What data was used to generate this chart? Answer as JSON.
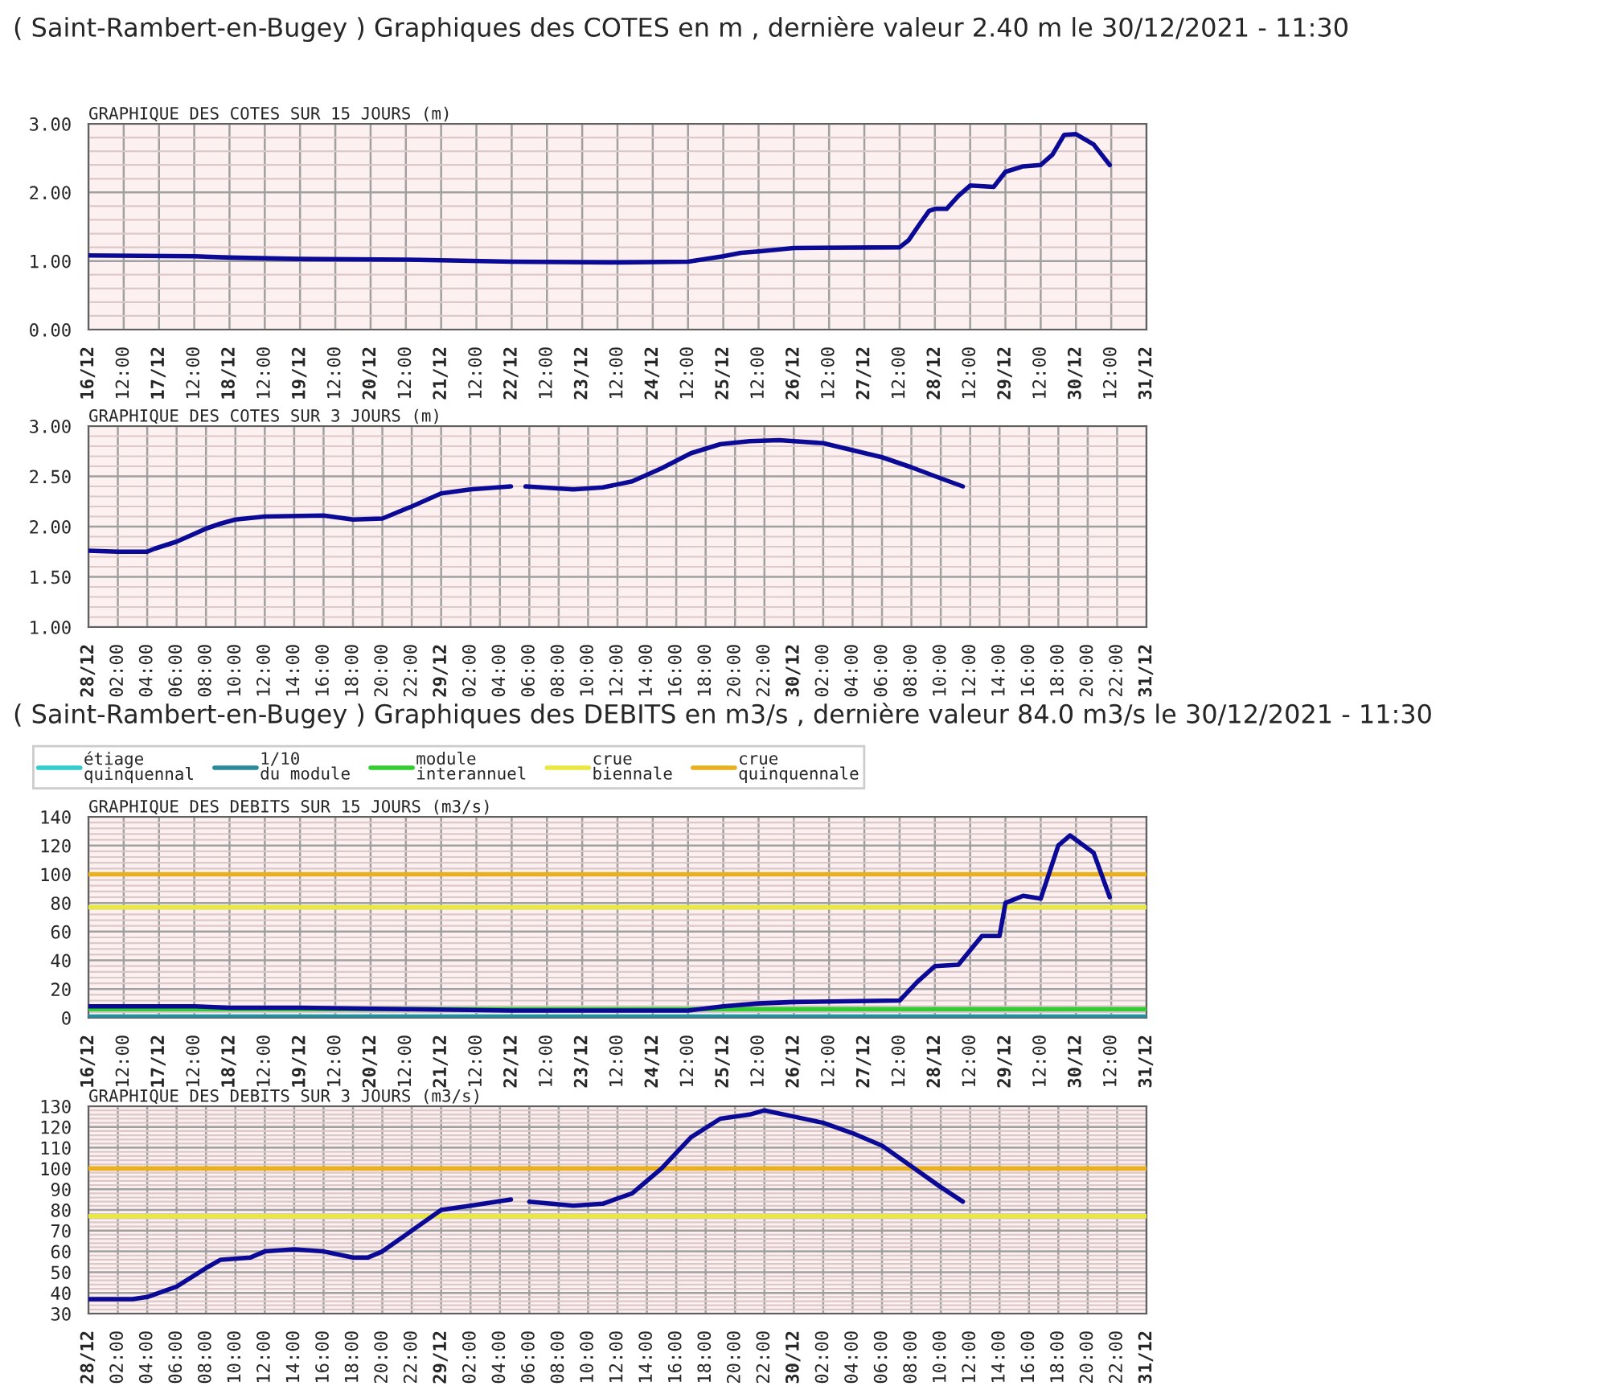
{
  "chart_data": [
    {
      "type": "line",
      "title": "GRAPHIQUE DES COTES SUR 15 JOURS (m)",
      "annotations": [
        "( Saint-Rambert-en-Bugey ) Graphiques des COTES en m , dernière valeur 2.40 m le 30/12/2021 - 11:30"
      ],
      "x": [
        "2021-12-16T00:00",
        "2021-12-17T12:00",
        "2021-12-18T00:00",
        "2021-12-19T00:00",
        "2021-12-20T12:00",
        "2021-12-21T00:00",
        "2021-12-22T00:00",
        "2021-12-23T12:00",
        "2021-12-24T12:00",
        "2021-12-25T00:00",
        "2021-12-25T06:00",
        "2021-12-25T12:00",
        "2021-12-26T00:00",
        "2021-12-27T12:00",
        "2021-12-27T15:00",
        "2021-12-27T19:00",
        "2021-12-27T22:00",
        "2021-12-28T00:00",
        "2021-12-28T04:00",
        "2021-12-28T08:00",
        "2021-12-28T12:00",
        "2021-12-28T20:00",
        "2021-12-29T00:00",
        "2021-12-29T06:00",
        "2021-12-29T12:00",
        "2021-12-29T16:00",
        "2021-12-29T20:00",
        "2021-12-30T00:00",
        "2021-12-30T06:00",
        "2021-12-30T11:30"
      ],
      "series": [
        {
          "color": "#0a0a96",
          "values": [
            1.08,
            1.07,
            1.05,
            1.03,
            1.02,
            1.01,
            0.99,
            0.98,
            0.99,
            1.07,
            1.12,
            1.14,
            1.19,
            1.2,
            1.3,
            1.55,
            1.73,
            1.76,
            1.76,
            1.95,
            2.1,
            2.08,
            2.3,
            2.38,
            2.4,
            2.55,
            2.84,
            2.85,
            2.7,
            2.4
          ]
        }
      ],
      "xlim": [
        "2021-12-16T00:00",
        "2021-12-31T00:00"
      ],
      "xticks": [
        {
          "value": "2021-12-16T00:00",
          "label": "16/12"
        },
        {
          "value": "2021-12-16T12:00",
          "label": "12:00"
        },
        {
          "value": "2021-12-17T00:00",
          "label": "17/12"
        },
        {
          "value": "2021-12-17T12:00",
          "label": "12:00"
        },
        {
          "value": "2021-12-18T00:00",
          "label": "18/12"
        },
        {
          "value": "2021-12-18T12:00",
          "label": "12:00"
        },
        {
          "value": "2021-12-19T00:00",
          "label": "19/12"
        },
        {
          "value": "2021-12-19T12:00",
          "label": "12:00"
        },
        {
          "value": "2021-12-20T00:00",
          "label": "20/12"
        },
        {
          "value": "2021-12-20T12:00",
          "label": "12:00"
        },
        {
          "value": "2021-12-21T00:00",
          "label": "21/12"
        },
        {
          "value": "2021-12-21T12:00",
          "label": "12:00"
        },
        {
          "value": "2021-12-22T00:00",
          "label": "22/12"
        },
        {
          "value": "2021-12-22T12:00",
          "label": "12:00"
        },
        {
          "value": "2021-12-23T00:00",
          "label": "23/12"
        },
        {
          "value": "2021-12-23T12:00",
          "label": "12:00"
        },
        {
          "value": "2021-12-24T00:00",
          "label": "24/12"
        },
        {
          "value": "2021-12-24T12:00",
          "label": "12:00"
        },
        {
          "value": "2021-12-25T00:00",
          "label": "25/12"
        },
        {
          "value": "2021-12-25T12:00",
          "label": "12:00"
        },
        {
          "value": "2021-12-26T00:00",
          "label": "26/12"
        },
        {
          "value": "2021-12-26T12:00",
          "label": "12:00"
        },
        {
          "value": "2021-12-27T00:00",
          "label": "27/12"
        },
        {
          "value": "2021-12-27T12:00",
          "label": "12:00"
        },
        {
          "value": "2021-12-28T00:00",
          "label": "28/12"
        },
        {
          "value": "2021-12-28T12:00",
          "label": "12:00"
        },
        {
          "value": "2021-12-29T00:00",
          "label": "29/12"
        },
        {
          "value": "2021-12-29T12:00",
          "label": "12:00"
        },
        {
          "value": "2021-12-30T00:00",
          "label": "30/12"
        },
        {
          "value": "2021-12-30T12:00",
          "label": "12:00"
        },
        {
          "value": "2021-12-31T00:00",
          "label": "31/12"
        }
      ],
      "ylim": [
        0,
        3
      ],
      "yticks": [
        {
          "value": 0,
          "label": "0.00"
        },
        {
          "value": 1,
          "label": "1.00"
        },
        {
          "value": 2,
          "label": "2.00"
        },
        {
          "value": 3,
          "label": "3.00"
        }
      ],
      "grid": true
    },
    {
      "type": "line",
      "title": "GRAPHIQUE DES COTES SUR 3 JOURS (m)",
      "x": [
        "2021-12-28T00:00",
        "2021-12-28T02:00",
        "2021-12-28T04:00",
        "2021-12-28T04:30",
        "2021-12-28T06:00",
        "2021-12-28T08:00",
        "2021-12-28T09:00",
        "2021-12-28T10:00",
        "2021-12-28T12:00",
        "2021-12-28T16:00",
        "2021-12-28T18:00",
        "2021-12-28T20:00",
        "2021-12-28T22:00",
        "2021-12-29T00:00",
        "2021-12-29T02:00",
        "2021-12-29T04:45",
        "2021-12-29T05:15",
        "2021-12-29T05:45",
        "2021-12-29T09:00",
        "2021-12-29T11:00",
        "2021-12-29T13:00",
        "2021-12-29T15:00",
        "2021-12-29T17:00",
        "2021-12-29T19:00",
        "2021-12-29T21:00",
        "2021-12-29T23:00",
        "2021-12-30T00:00",
        "2021-12-30T02:00",
        "2021-12-30T04:00",
        "2021-12-30T06:00",
        "2021-12-30T08:00",
        "2021-12-30T10:00",
        "2021-12-30T11:30"
      ],
      "series": [
        {
          "color": "#0a0a96",
          "values": [
            1.76,
            1.75,
            1.75,
            1.78,
            1.85,
            1.98,
            2.03,
            2.07,
            2.1,
            2.11,
            2.07,
            2.08,
            2.2,
            2.33,
            2.37,
            2.4,
            null,
            2.4,
            2.37,
            2.39,
            2.45,
            2.58,
            2.73,
            2.82,
            2.85,
            2.86,
            2.85,
            2.83,
            2.76,
            2.69,
            2.59,
            2.48,
            2.4
          ]
        }
      ],
      "xlim": [
        "2021-12-28T00:00",
        "2021-12-31T00:00"
      ],
      "xticks": [
        {
          "value": "2021-12-28T00:00",
          "label": "28/12"
        },
        {
          "value": "2021-12-28T02:00",
          "label": "02:00"
        },
        {
          "value": "2021-12-28T04:00",
          "label": "04:00"
        },
        {
          "value": "2021-12-28T06:00",
          "label": "06:00"
        },
        {
          "value": "2021-12-28T08:00",
          "label": "08:00"
        },
        {
          "value": "2021-12-28T10:00",
          "label": "10:00"
        },
        {
          "value": "2021-12-28T12:00",
          "label": "12:00"
        },
        {
          "value": "2021-12-28T14:00",
          "label": "14:00"
        },
        {
          "value": "2021-12-28T16:00",
          "label": "16:00"
        },
        {
          "value": "2021-12-28T18:00",
          "label": "18:00"
        },
        {
          "value": "2021-12-28T20:00",
          "label": "20:00"
        },
        {
          "value": "2021-12-28T22:00",
          "label": "22:00"
        },
        {
          "value": "2021-12-29T00:00",
          "label": "29/12"
        },
        {
          "value": "2021-12-29T02:00",
          "label": "02:00"
        },
        {
          "value": "2021-12-29T04:00",
          "label": "04:00"
        },
        {
          "value": "2021-12-29T06:00",
          "label": "06:00"
        },
        {
          "value": "2021-12-29T08:00",
          "label": "08:00"
        },
        {
          "value": "2021-12-29T10:00",
          "label": "10:00"
        },
        {
          "value": "2021-12-29T12:00",
          "label": "12:00"
        },
        {
          "value": "2021-12-29T14:00",
          "label": "14:00"
        },
        {
          "value": "2021-12-29T16:00",
          "label": "16:00"
        },
        {
          "value": "2021-12-29T18:00",
          "label": "18:00"
        },
        {
          "value": "2021-12-29T20:00",
          "label": "20:00"
        },
        {
          "value": "2021-12-29T22:00",
          "label": "22:00"
        },
        {
          "value": "2021-12-30T00:00",
          "label": "30/12"
        },
        {
          "value": "2021-12-30T02:00",
          "label": "02:00"
        },
        {
          "value": "2021-12-30T04:00",
          "label": "04:00"
        },
        {
          "value": "2021-12-30T06:00",
          "label": "06:00"
        },
        {
          "value": "2021-12-30T08:00",
          "label": "08:00"
        },
        {
          "value": "2021-12-30T10:00",
          "label": "10:00"
        },
        {
          "value": "2021-12-30T12:00",
          "label": "12:00"
        },
        {
          "value": "2021-12-30T14:00",
          "label": "14:00"
        },
        {
          "value": "2021-12-30T16:00",
          "label": "16:00"
        },
        {
          "value": "2021-12-30T18:00",
          "label": "18:00"
        },
        {
          "value": "2021-12-30T20:00",
          "label": "20:00"
        },
        {
          "value": "2021-12-30T22:00",
          "label": "22:00"
        },
        {
          "value": "2021-12-31T00:00",
          "label": "31/12"
        }
      ],
      "ylim": [
        1,
        3
      ],
      "yticks": [
        {
          "value": 1,
          "label": "1.00"
        },
        {
          "value": 1.5,
          "label": "1.50"
        },
        {
          "value": 2,
          "label": "2.00"
        },
        {
          "value": 2.5,
          "label": "2.50"
        },
        {
          "value": 3,
          "label": "3.00"
        }
      ],
      "grid": true
    },
    {
      "type": "line",
      "title": "GRAPHIQUE DES DEBITS SUR 15 JOURS (m3/s)",
      "annotations": [
        "( Saint-Rambert-en-Bugey ) Graphiques des DEBITS en m3/s , dernière valeur 84.0 m3/s le 30/12/2021 - 11:30"
      ],
      "x": [
        "2021-12-16T00:00",
        "2021-12-17T12:00",
        "2021-12-18T00:00",
        "2021-12-19T00:00",
        "2021-12-20T12:00",
        "2021-12-22T00:00",
        "2021-12-24T12:00",
        "2021-12-25T00:00",
        "2021-12-25T12:00",
        "2021-12-26T00:00",
        "2021-12-27T12:00",
        "2021-12-27T18:00",
        "2021-12-28T00:00",
        "2021-12-28T08:00",
        "2021-12-28T16:00",
        "2021-12-28T22:00",
        "2021-12-29T00:00",
        "2021-12-29T06:00",
        "2021-12-29T12:00",
        "2021-12-29T18:00",
        "2021-12-29T22:00",
        "2021-12-30T06:00",
        "2021-12-30T11:30"
      ],
      "series": [
        {
          "color": "#0a0a96",
          "values": [
            8,
            8,
            7,
            7,
            6,
            5,
            5,
            8,
            10,
            11,
            12,
            25,
            36,
            37,
            57,
            57,
            80,
            85,
            83,
            120,
            127,
            115,
            84
          ]
        }
      ],
      "xlim": [
        "2021-12-16T00:00",
        "2021-12-31T00:00"
      ],
      "xticks": [
        {
          "value": "2021-12-16T00:00",
          "label": "16/12"
        },
        {
          "value": "2021-12-16T12:00",
          "label": "12:00"
        },
        {
          "value": "2021-12-17T00:00",
          "label": "17/12"
        },
        {
          "value": "2021-12-17T12:00",
          "label": "12:00"
        },
        {
          "value": "2021-12-18T00:00",
          "label": "18/12"
        },
        {
          "value": "2021-12-18T12:00",
          "label": "12:00"
        },
        {
          "value": "2021-12-19T00:00",
          "label": "19/12"
        },
        {
          "value": "2021-12-19T12:00",
          "label": "12:00"
        },
        {
          "value": "2021-12-20T00:00",
          "label": "20/12"
        },
        {
          "value": "2021-12-20T12:00",
          "label": "12:00"
        },
        {
          "value": "2021-12-21T00:00",
          "label": "21/12"
        },
        {
          "value": "2021-12-21T12:00",
          "label": "12:00"
        },
        {
          "value": "2021-12-22T00:00",
          "label": "22/12"
        },
        {
          "value": "2021-12-22T12:00",
          "label": "12:00"
        },
        {
          "value": "2021-12-23T00:00",
          "label": "23/12"
        },
        {
          "value": "2021-12-23T12:00",
          "label": "12:00"
        },
        {
          "value": "2021-12-24T00:00",
          "label": "24/12"
        },
        {
          "value": "2021-12-24T12:00",
          "label": "12:00"
        },
        {
          "value": "2021-12-25T00:00",
          "label": "25/12"
        },
        {
          "value": "2021-12-25T12:00",
          "label": "12:00"
        },
        {
          "value": "2021-12-26T00:00",
          "label": "26/12"
        },
        {
          "value": "2021-12-26T12:00",
          "label": "12:00"
        },
        {
          "value": "2021-12-27T00:00",
          "label": "27/12"
        },
        {
          "value": "2021-12-27T12:00",
          "label": "12:00"
        },
        {
          "value": "2021-12-28T00:00",
          "label": "28/12"
        },
        {
          "value": "2021-12-28T12:00",
          "label": "12:00"
        },
        {
          "value": "2021-12-29T00:00",
          "label": "29/12"
        },
        {
          "value": "2021-12-29T12:00",
          "label": "12:00"
        },
        {
          "value": "2021-12-30T00:00",
          "label": "30/12"
        },
        {
          "value": "2021-12-30T12:00",
          "label": "12:00"
        },
        {
          "value": "2021-12-31T00:00",
          "label": "31/12"
        }
      ],
      "ylim": [
        0,
        140
      ],
      "yticks": [
        0,
        20,
        40,
        60,
        80,
        100,
        120,
        140
      ],
      "ref_lines": [
        {
          "axis": "y",
          "value": 1,
          "label": "étiage quinquennal",
          "color": "#33cccc"
        },
        {
          "axis": "y",
          "value": 0.6,
          "label": "1/10 du module",
          "color": "#2a8a9a"
        },
        {
          "axis": "y",
          "value": 6,
          "label": "module interannuel",
          "color": "#33cc33"
        },
        {
          "axis": "y",
          "value": 77,
          "label": "crue biennale",
          "color": "#e8e840"
        },
        {
          "axis": "y",
          "value": 100,
          "label": "crue quinquennale",
          "color": "#e8b020"
        }
      ],
      "legend": "top",
      "grid": true
    },
    {
      "type": "line",
      "title": "GRAPHIQUE DES DEBITS SUR 3 JOURS (m3/s)",
      "x": [
        "2021-12-28T00:00",
        "2021-12-28T03:00",
        "2021-12-28T04:00",
        "2021-12-28T06:00",
        "2021-12-28T08:00",
        "2021-12-28T09:00",
        "2021-12-28T11:00",
        "2021-12-28T12:00",
        "2021-12-28T14:00",
        "2021-12-28T16:00",
        "2021-12-28T18:00",
        "2021-12-28T19:00",
        "2021-12-28T20:00",
        "2021-12-28T22:00",
        "2021-12-29T00:00",
        "2021-12-29T02:00",
        "2021-12-29T04:45",
        "2021-12-29T05:15",
        "2021-12-29T06:00",
        "2021-12-29T09:00",
        "2021-12-29T11:00",
        "2021-12-29T13:00",
        "2021-12-29T15:00",
        "2021-12-29T17:00",
        "2021-12-29T19:00",
        "2021-12-29T21:00",
        "2021-12-29T22:00",
        "2021-12-30T00:00",
        "2021-12-30T02:00",
        "2021-12-30T04:00",
        "2021-12-30T06:00",
        "2021-12-30T08:00",
        "2021-12-30T10:00",
        "2021-12-30T11:30"
      ],
      "series": [
        {
          "color": "#0a0a96",
          "values": [
            37,
            37,
            38,
            43,
            52,
            56,
            57,
            60,
            61,
            60,
            57,
            57,
            60,
            70,
            80,
            82,
            85,
            null,
            84,
            82,
            83,
            88,
            100,
            115,
            124,
            126,
            128,
            125,
            122,
            117,
            111,
            101,
            91,
            84
          ]
        }
      ],
      "xlim": [
        "2021-12-28T00:00",
        "2021-12-31T00:00"
      ],
      "xticks": [
        {
          "value": "2021-12-28T00:00",
          "label": "28/12"
        },
        {
          "value": "2021-12-28T02:00",
          "label": "02:00"
        },
        {
          "value": "2021-12-28T04:00",
          "label": "04:00"
        },
        {
          "value": "2021-12-28T06:00",
          "label": "06:00"
        },
        {
          "value": "2021-12-28T08:00",
          "label": "08:00"
        },
        {
          "value": "2021-12-28T10:00",
          "label": "10:00"
        },
        {
          "value": "2021-12-28T12:00",
          "label": "12:00"
        },
        {
          "value": "2021-12-28T14:00",
          "label": "14:00"
        },
        {
          "value": "2021-12-28T16:00",
          "label": "16:00"
        },
        {
          "value": "2021-12-28T18:00",
          "label": "18:00"
        },
        {
          "value": "2021-12-28T20:00",
          "label": "20:00"
        },
        {
          "value": "2021-12-28T22:00",
          "label": "22:00"
        },
        {
          "value": "2021-12-29T00:00",
          "label": "29/12"
        },
        {
          "value": "2021-12-29T02:00",
          "label": "02:00"
        },
        {
          "value": "2021-12-29T04:00",
          "label": "04:00"
        },
        {
          "value": "2021-12-29T06:00",
          "label": "06:00"
        },
        {
          "value": "2021-12-29T08:00",
          "label": "08:00"
        },
        {
          "value": "2021-12-29T10:00",
          "label": "10:00"
        },
        {
          "value": "2021-12-29T12:00",
          "label": "12:00"
        },
        {
          "value": "2021-12-29T14:00",
          "label": "14:00"
        },
        {
          "value": "2021-12-29T16:00",
          "label": "16:00"
        },
        {
          "value": "2021-12-29T18:00",
          "label": "18:00"
        },
        {
          "value": "2021-12-29T20:00",
          "label": "20:00"
        },
        {
          "value": "2021-12-29T22:00",
          "label": "22:00"
        },
        {
          "value": "2021-12-30T00:00",
          "label": "30/12"
        },
        {
          "value": "2021-12-30T02:00",
          "label": "02:00"
        },
        {
          "value": "2021-12-30T04:00",
          "label": "04:00"
        },
        {
          "value": "2021-12-30T06:00",
          "label": "06:00"
        },
        {
          "value": "2021-12-30T08:00",
          "label": "08:00"
        },
        {
          "value": "2021-12-30T10:00",
          "label": "10:00"
        },
        {
          "value": "2021-12-30T12:00",
          "label": "12:00"
        },
        {
          "value": "2021-12-30T14:00",
          "label": "14:00"
        },
        {
          "value": "2021-12-30T16:00",
          "label": "16:00"
        },
        {
          "value": "2021-12-30T18:00",
          "label": "18:00"
        },
        {
          "value": "2021-12-30T20:00",
          "label": "20:00"
        },
        {
          "value": "2021-12-30T22:00",
          "label": "22:00"
        },
        {
          "value": "2021-12-31T00:00",
          "label": "31/12"
        }
      ],
      "ylim": [
        30,
        130
      ],
      "yticks": [
        30,
        40,
        50,
        60,
        70,
        80,
        90,
        100,
        110,
        120,
        130
      ],
      "ref_lines": [
        {
          "axis": "y",
          "value": 77,
          "color": "#e8e840"
        },
        {
          "axis": "y",
          "value": 100,
          "color": "#e8b020"
        }
      ],
      "grid": true
    }
  ]
}
